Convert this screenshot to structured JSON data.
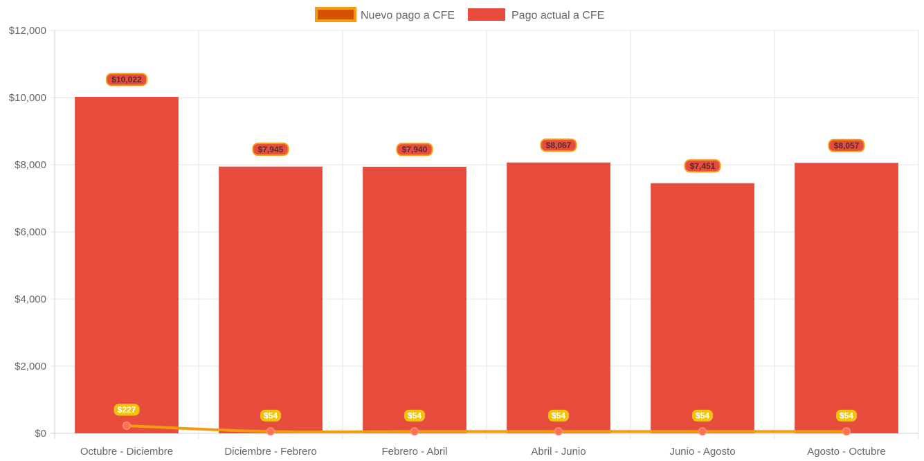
{
  "chart_data": {
    "type": "bar",
    "categories": [
      "Octubre - Diciembre",
      "Diciembre - Febrero",
      "Febrero - Abril",
      "Abril - Junio",
      "Junio - Agosto",
      "Agosto - Octubre"
    ],
    "series": [
      {
        "name": "Nuevo pago a CFE",
        "type": "line",
        "values": [
          227,
          54,
          54,
          54,
          54,
          54
        ],
        "labels": [
          "$227",
          "$54",
          "$54",
          "$54",
          "$54",
          "$54"
        ],
        "color": "#f39c12",
        "legend_fill": "#d35400",
        "point_color": "#ff7055",
        "label_bg": "#f1c40f"
      },
      {
        "name": "Pago actual a CFE",
        "type": "bar",
        "values": [
          10022,
          7945,
          7940,
          8067,
          7451,
          8057
        ],
        "labels": [
          "$10,022",
          "$7,945",
          "$7,940",
          "$8,067",
          "$7,451",
          "$8,057"
        ],
        "color": "#e74c3c",
        "label_bg": "#e74c3c",
        "label_border": "#f39c12"
      }
    ],
    "y_ticks": [
      0,
      2000,
      4000,
      6000,
      8000,
      10000,
      12000
    ],
    "y_tick_labels": [
      "$0",
      "$2,000",
      "$4,000",
      "$6,000",
      "$8,000",
      "$10,000",
      "$12,000"
    ],
    "ylim": [
      0,
      12000
    ],
    "grid": true,
    "legend_position": "top-center",
    "title": "",
    "xlabel": "",
    "ylabel": ""
  }
}
